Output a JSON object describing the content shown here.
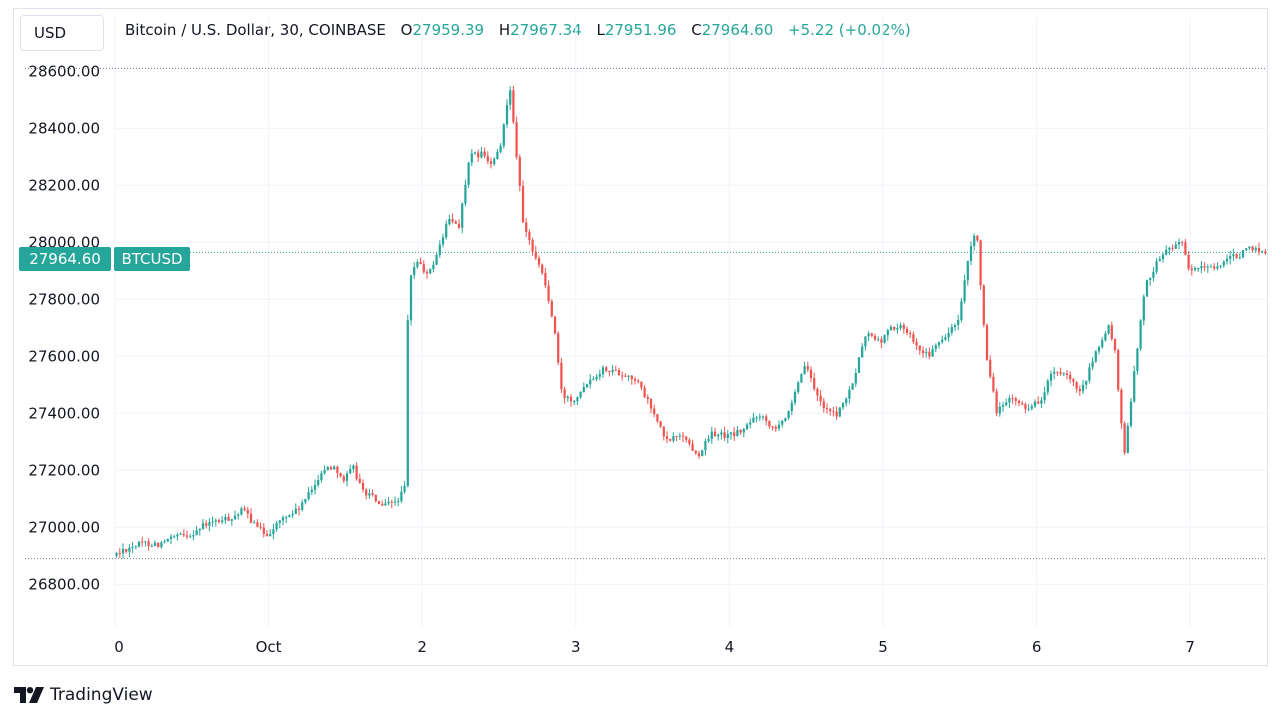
{
  "toolbar": {
    "currency": "USD"
  },
  "legend": {
    "title": "Bitcoin / U.S. Dollar, 30, COINBASE",
    "o_label": "O",
    "o_value": "27959.39",
    "h_label": "H",
    "h_value": "27967.34",
    "l_label": "L",
    "l_value": "27951.96",
    "c_label": "C",
    "c_value": "27964.60",
    "change": "+5.22 (+0.02%)"
  },
  "price_tag": {
    "value": "27964.60",
    "symbol": "BTCUSD"
  },
  "brand": {
    "name": "TradingView"
  },
  "colors": {
    "up": "#26a69a",
    "down": "#ef5350",
    "grid": "#f0f3fa",
    "text": "#131722"
  },
  "chart_data": {
    "type": "candlestick",
    "symbol": "BTCUSD",
    "interval_minutes": 30,
    "ylim": [
      26650,
      28650
    ],
    "y_ticks": [
      "26800.00",
      "27000.00",
      "27200.00",
      "27400.00",
      "27600.00",
      "27800.00",
      "28000.00",
      "28200.00",
      "28400.00",
      "28600.00"
    ],
    "y_tick_values": [
      26800,
      27000,
      27200,
      27400,
      27600,
      27800,
      28000,
      28200,
      28400,
      28600
    ],
    "x_ticks": [
      {
        "label": "0",
        "t": 0
      },
      {
        "label": "Oct",
        "t": 1
      },
      {
        "label": "2",
        "t": 2
      },
      {
        "label": "3",
        "t": 3
      },
      {
        "label": "4",
        "t": 4
      },
      {
        "label": "5",
        "t": 5
      },
      {
        "label": "6",
        "t": 6
      },
      {
        "label": "7",
        "t": 7
      }
    ],
    "xlim": [
      0,
      7.5
    ],
    "high_line": 28610,
    "low_line": 26890,
    "last_price": 27964.6,
    "anchors": [
      [
        0.0,
        26900
      ],
      [
        0.1,
        26930
      ],
      [
        0.2,
        26945
      ],
      [
        0.3,
        26940
      ],
      [
        0.4,
        26965
      ],
      [
        0.5,
        26975
      ],
      [
        0.6,
        27010
      ],
      [
        0.75,
        27030
      ],
      [
        0.85,
        27060
      ],
      [
        0.93,
        27000
      ],
      [
        1.0,
        26975
      ],
      [
        1.1,
        27030
      ],
      [
        1.2,
        27060
      ],
      [
        1.28,
        27120
      ],
      [
        1.36,
        27200
      ],
      [
        1.44,
        27215
      ],
      [
        1.5,
        27165
      ],
      [
        1.56,
        27210
      ],
      [
        1.62,
        27130
      ],
      [
        1.7,
        27100
      ],
      [
        1.75,
        27070
      ],
      [
        1.85,
        27095
      ],
      [
        1.9,
        27140
      ],
      [
        1.92,
        27840
      ],
      [
        1.97,
        27940
      ],
      [
        2.05,
        27880
      ],
      [
        2.12,
        27980
      ],
      [
        2.18,
        28080
      ],
      [
        2.25,
        28060
      ],
      [
        2.32,
        28300
      ],
      [
        2.4,
        28310
      ],
      [
        2.46,
        28270
      ],
      [
        2.52,
        28330
      ],
      [
        2.58,
        28560
      ],
      [
        2.63,
        28280
      ],
      [
        2.67,
        28050
      ],
      [
        2.75,
        27950
      ],
      [
        2.8,
        27880
      ],
      [
        2.87,
        27700
      ],
      [
        2.92,
        27460
      ],
      [
        3.0,
        27450
      ],
      [
        3.08,
        27510
      ],
      [
        3.2,
        27560
      ],
      [
        3.3,
        27540
      ],
      [
        3.4,
        27520
      ],
      [
        3.5,
        27420
      ],
      [
        3.6,
        27300
      ],
      [
        3.7,
        27330
      ],
      [
        3.8,
        27250
      ],
      [
        3.9,
        27330
      ],
      [
        4.0,
        27320
      ],
      [
        4.1,
        27340
      ],
      [
        4.2,
        27400
      ],
      [
        4.3,
        27350
      ],
      [
        4.4,
        27400
      ],
      [
        4.5,
        27570
      ],
      [
        4.6,
        27440
      ],
      [
        4.7,
        27390
      ],
      [
        4.8,
        27480
      ],
      [
        4.9,
        27680
      ],
      [
        5.0,
        27650
      ],
      [
        5.05,
        27700
      ],
      [
        5.15,
        27700
      ],
      [
        5.25,
        27630
      ],
      [
        5.3,
        27600
      ],
      [
        5.4,
        27660
      ],
      [
        5.5,
        27720
      ],
      [
        5.57,
        27950
      ],
      [
        5.62,
        28050
      ],
      [
        5.68,
        27600
      ],
      [
        5.75,
        27410
      ],
      [
        5.85,
        27450
      ],
      [
        5.95,
        27420
      ],
      [
        6.05,
        27450
      ],
      [
        6.1,
        27540
      ],
      [
        6.2,
        27530
      ],
      [
        6.3,
        27470
      ],
      [
        6.4,
        27620
      ],
      [
        6.48,
        27700
      ],
      [
        6.52,
        27630
      ],
      [
        6.58,
        27240
      ],
      [
        6.65,
        27570
      ],
      [
        6.72,
        27850
      ],
      [
        6.8,
        27940
      ],
      [
        6.9,
        27990
      ],
      [
        6.95,
        28010
      ],
      [
        7.0,
        27900
      ],
      [
        7.1,
        27910
      ],
      [
        7.2,
        27920
      ],
      [
        7.3,
        27950
      ],
      [
        7.42,
        27980
      ],
      [
        7.5,
        27964.6
      ]
    ]
  }
}
